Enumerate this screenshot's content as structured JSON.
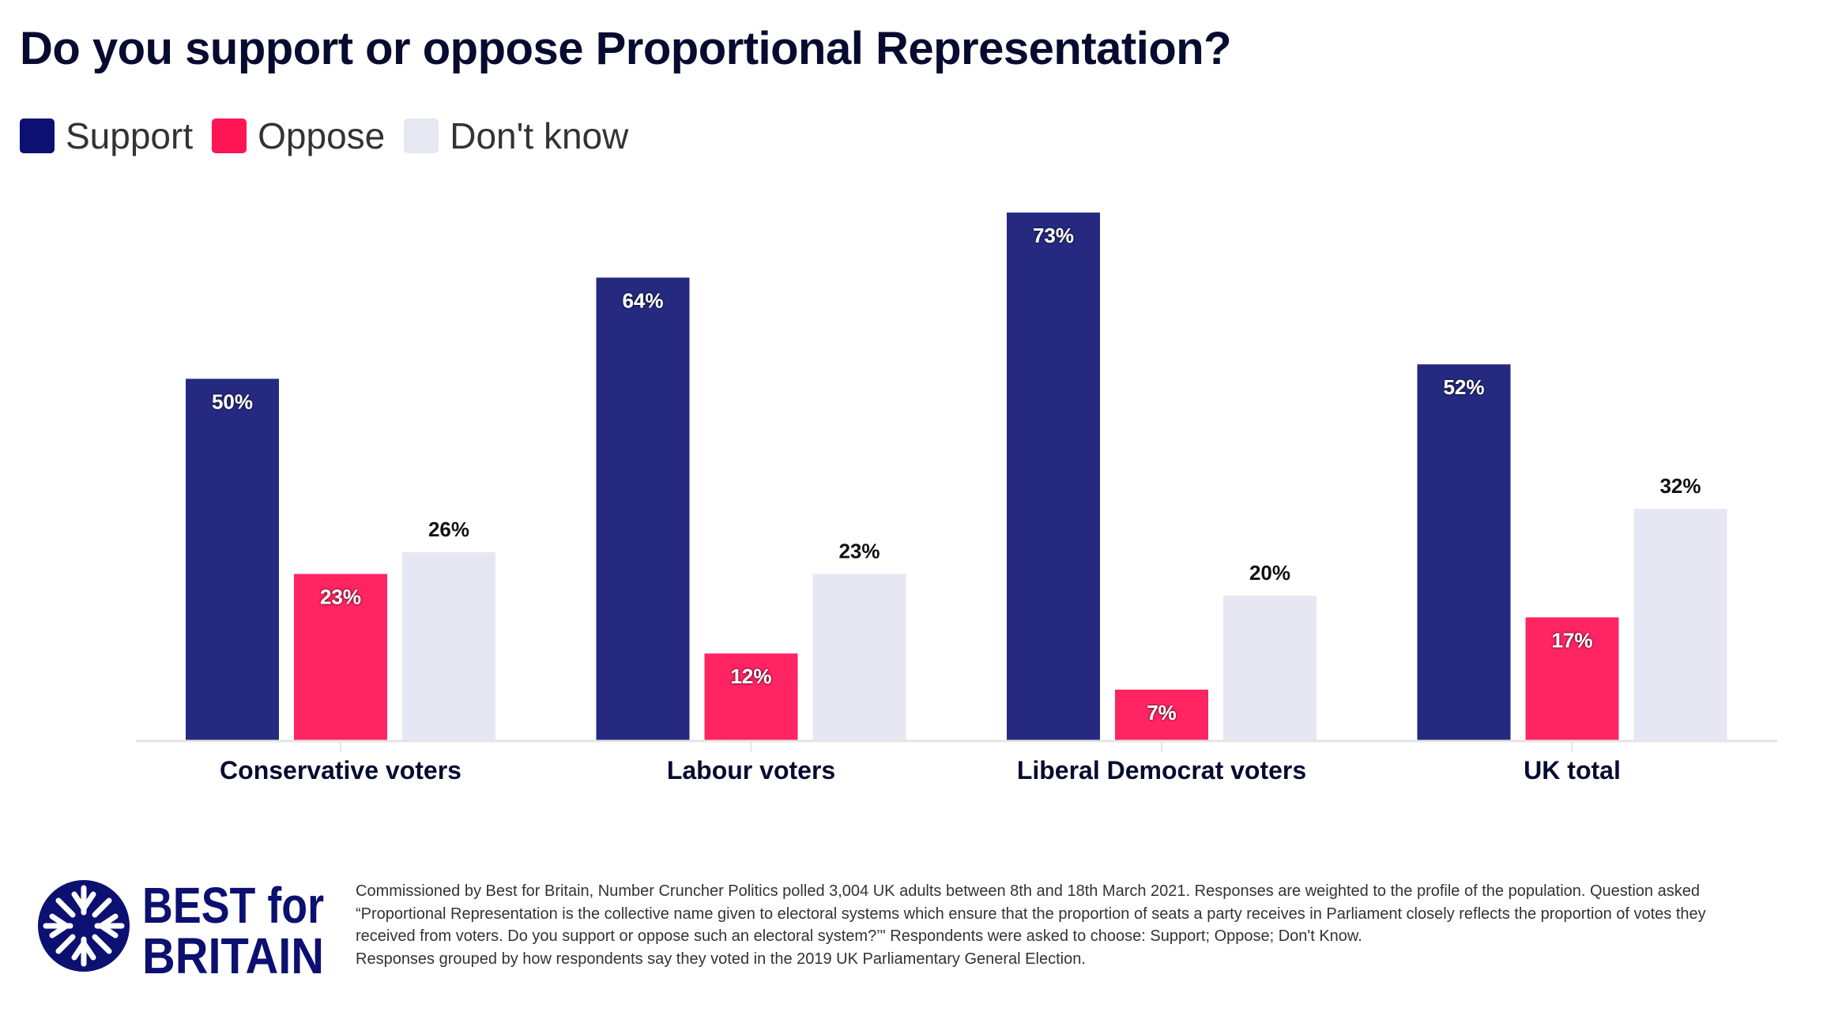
{
  "chart_data": {
    "type": "bar",
    "title": "Do you support or oppose Proportional Representation?",
    "categories": [
      "Conservative voters",
      "Labour voters",
      "Liberal Democrat voters",
      "UK total"
    ],
    "series": [
      {
        "name": "Support",
        "color": "#252a80",
        "legend_color": "#0c1070",
        "values": [
          50,
          64,
          73,
          52
        ],
        "labels": [
          "50%",
          "64%",
          "73%",
          "52%"
        ]
      },
      {
        "name": "Oppose",
        "color": "#ff2462",
        "legend_color": "#ff1553",
        "values": [
          23,
          12,
          7,
          17
        ],
        "labels": [
          "23%",
          "12%",
          "7%",
          "17%"
        ]
      },
      {
        "name": "Don't know",
        "color": "#e6e7f2",
        "legend_color": "#e6e8f2",
        "values": [
          26,
          23,
          20,
          32
        ],
        "labels": [
          "26%",
          "23%",
          "20%",
          "32%"
        ]
      }
    ],
    "ylim": [
      0,
      80
    ],
    "grid": false,
    "legend_position": "top-left",
    "xlabel": "",
    "ylabel": ""
  },
  "logo": {
    "line1": "BEST for",
    "line2": "BRITAIN",
    "color": "#0c1070"
  },
  "footer": {
    "lines": [
      "Commissioned by Best for Britain, Number Cruncher Politics polled 3,004 UK adults between 8th and 18th March 2021. Responses are weighted to the profile of the population. Question asked",
      "“Proportional Representation is the collective name given to electoral systems which ensure that the proportion of seats a party receives in Parliament closely reflects the proportion of votes they",
      "received from voters. Do you support or oppose such an electoral system?’\" Respondents were asked to choose: Support; Oppose; Don't Know.",
      "Responses grouped by how respondents say they voted in the 2019 UK Parliamentary General Election."
    ]
  }
}
